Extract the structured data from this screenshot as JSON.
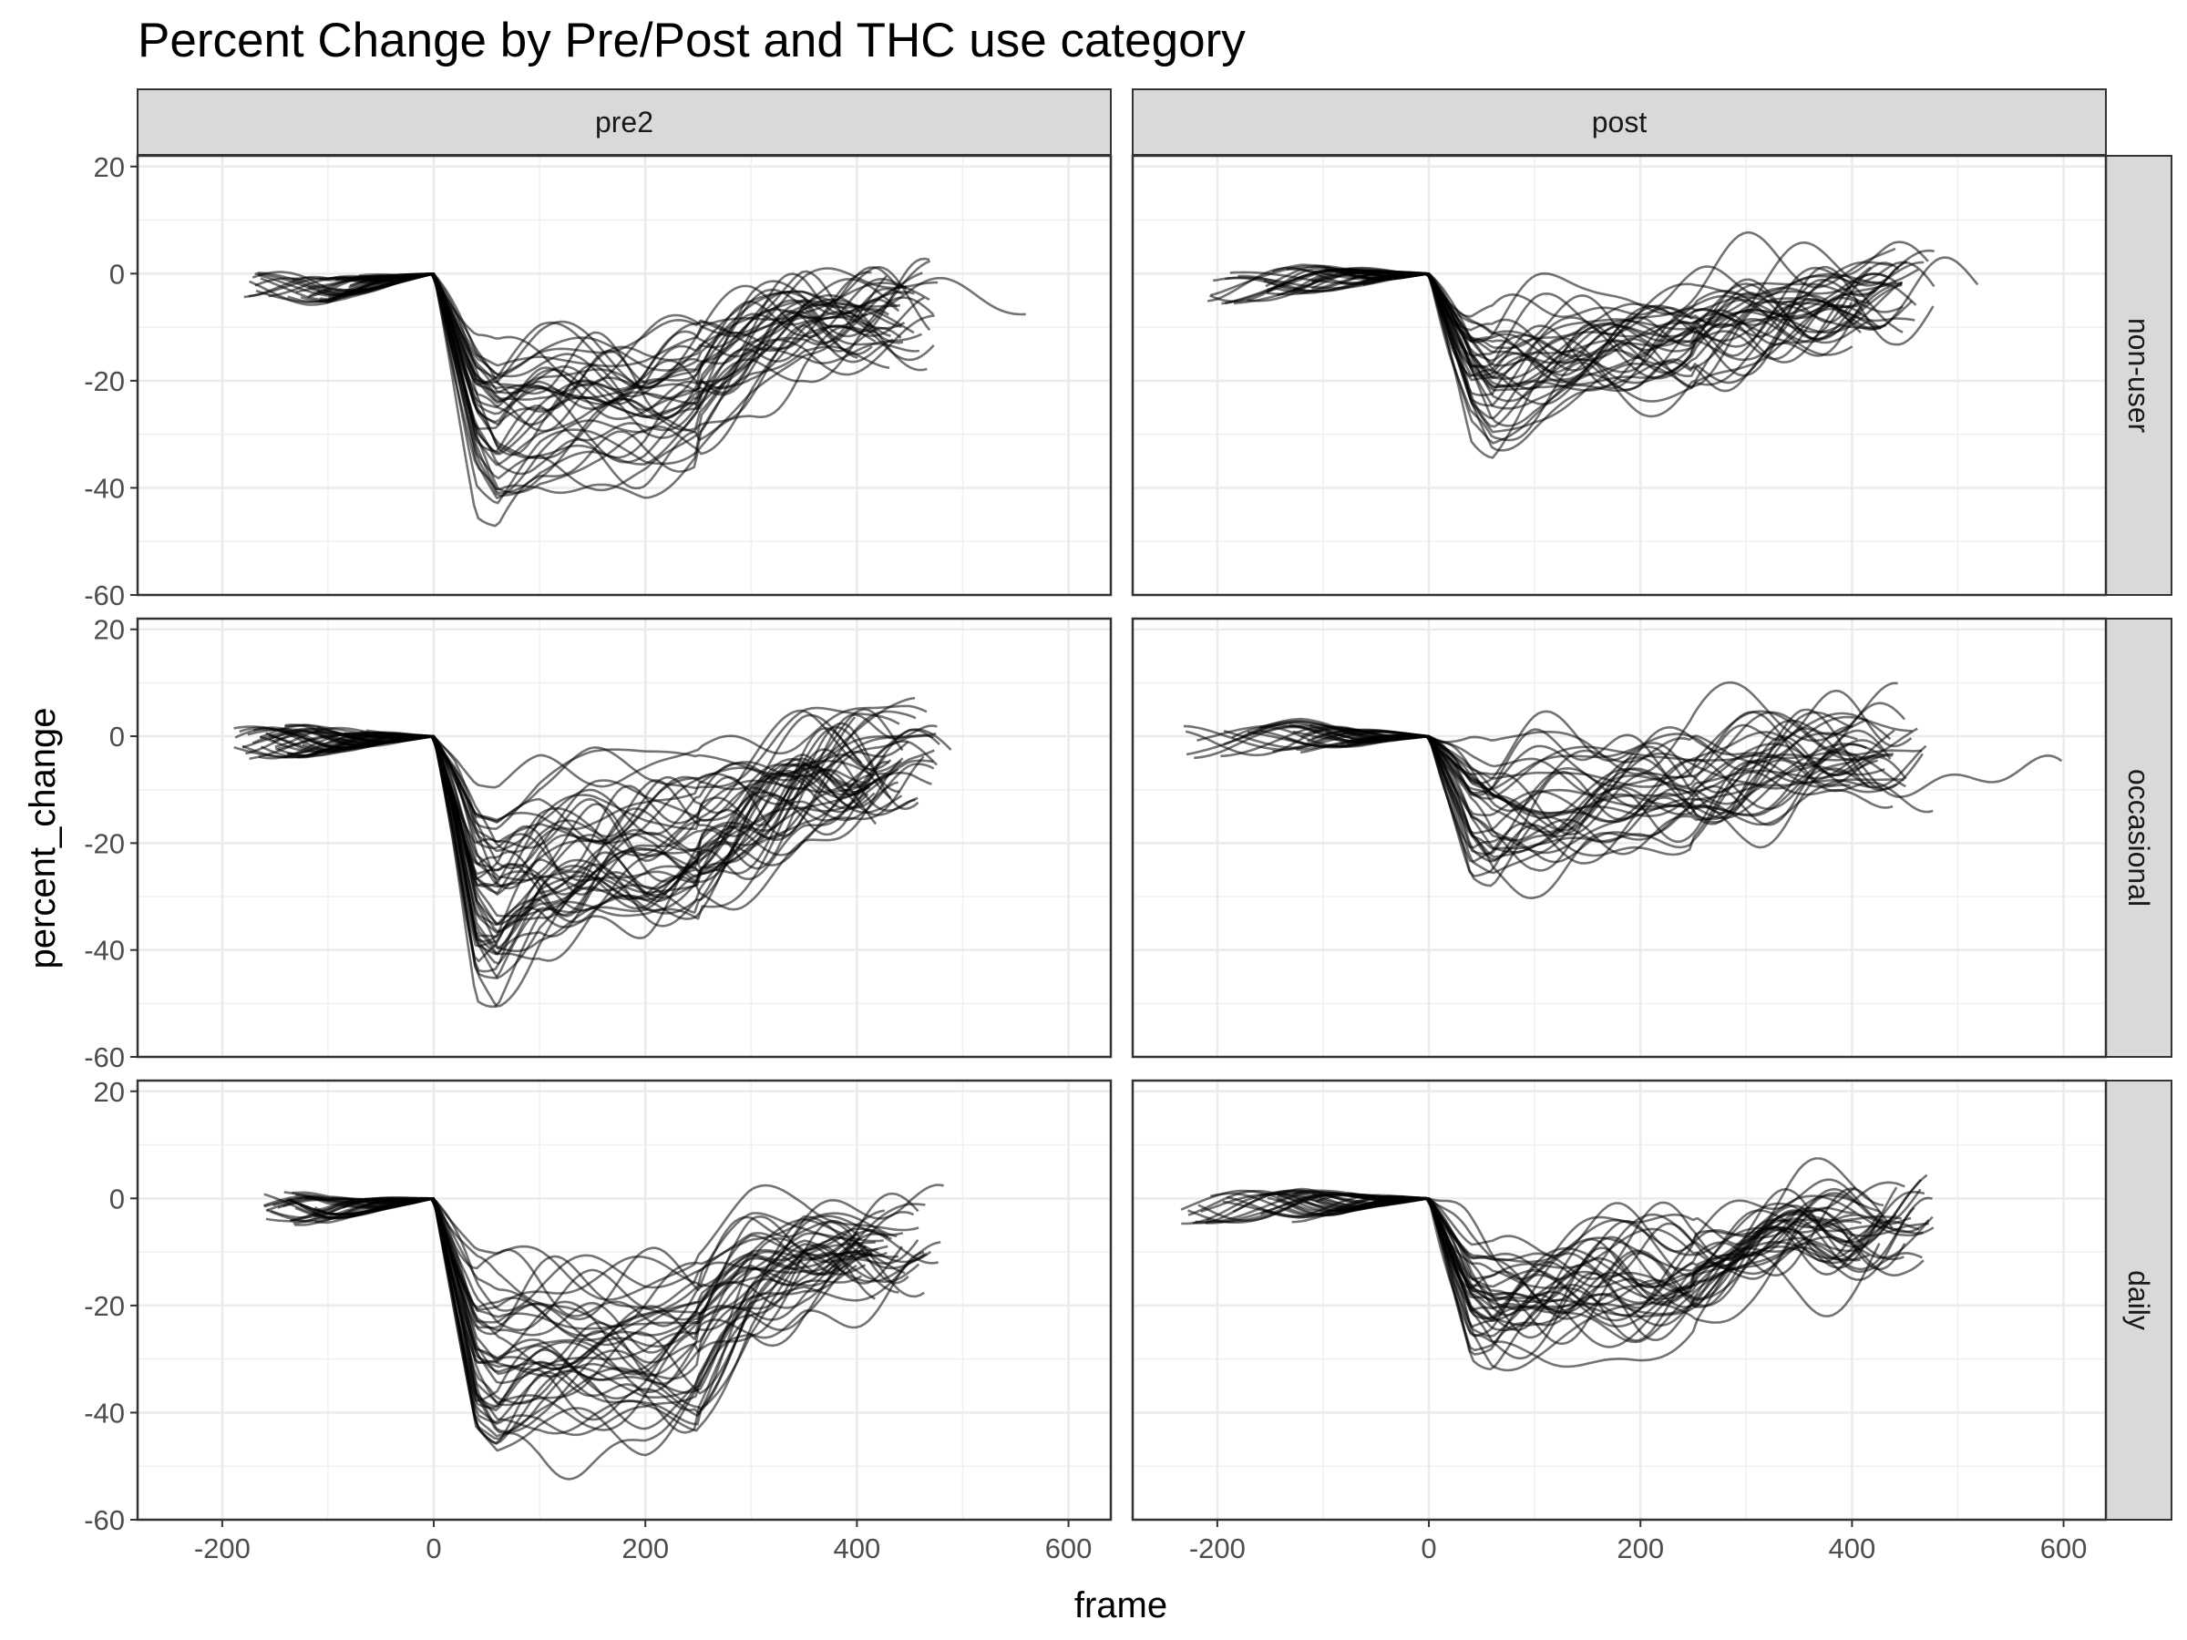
{
  "chart_data": {
    "type": "line",
    "title": "Percent Change by Pre/Post and THC use category",
    "xlabel": "frame",
    "ylabel": "percent_change",
    "xlim": [
      -280,
      640
    ],
    "ylim": [
      -60,
      22
    ],
    "x_ticks": [
      -200,
      0,
      200,
      400,
      600
    ],
    "y_ticks": [
      20,
      0,
      -20,
      -40,
      -60
    ],
    "grid": true,
    "facet_columns": [
      "pre2",
      "post"
    ],
    "facet_rows": [
      "non-user",
      "occasional",
      "daily"
    ],
    "line_color": "#000000",
    "line_opacity": 0.55,
    "panels": [
      {
        "col": "pre2",
        "row": "non-user",
        "n_lines": 38,
        "x_start_min": -180,
        "x_end_max": 560,
        "median_trace": [
          [
            -180,
            -2
          ],
          [
            -100,
            -3
          ],
          [
            0,
            0
          ],
          [
            20,
            -12
          ],
          [
            40,
            -24
          ],
          [
            60,
            -28
          ],
          [
            100,
            -25
          ],
          [
            150,
            -24
          ],
          [
            200,
            -24
          ],
          [
            250,
            -21
          ],
          [
            300,
            -14
          ],
          [
            350,
            -9
          ],
          [
            420,
            -8
          ]
        ]
      },
      {
        "col": "post",
        "row": "non-user",
        "n_lines": 36,
        "x_start_min": -210,
        "x_end_max": 520,
        "median_trace": [
          [
            -200,
            -3
          ],
          [
            -100,
            -1
          ],
          [
            0,
            0
          ],
          [
            20,
            -9
          ],
          [
            40,
            -17
          ],
          [
            60,
            -20
          ],
          [
            100,
            -17
          ],
          [
            150,
            -15
          ],
          [
            200,
            -14
          ],
          [
            250,
            -12
          ],
          [
            300,
            -9
          ],
          [
            350,
            -7
          ],
          [
            440,
            -4
          ]
        ]
      },
      {
        "col": "pre2",
        "row": "occasional",
        "n_lines": 44,
        "x_start_min": -195,
        "x_end_max": 490,
        "median_trace": [
          [
            -150,
            -1
          ],
          [
            -100,
            -1
          ],
          [
            0,
            0
          ],
          [
            20,
            -12
          ],
          [
            40,
            -27
          ],
          [
            60,
            -30
          ],
          [
            100,
            -24
          ],
          [
            150,
            -22
          ],
          [
            200,
            -22
          ],
          [
            250,
            -20
          ],
          [
            300,
            -14
          ],
          [
            350,
            -9
          ],
          [
            450,
            -5
          ]
        ]
      },
      {
        "col": "post",
        "row": "occasional",
        "n_lines": 34,
        "x_start_min": -235,
        "x_end_max": 600,
        "median_trace": [
          [
            -200,
            -1
          ],
          [
            -100,
            0
          ],
          [
            0,
            0
          ],
          [
            20,
            -7
          ],
          [
            40,
            -15
          ],
          [
            60,
            -17
          ],
          [
            100,
            -14
          ],
          [
            150,
            -12
          ],
          [
            200,
            -11
          ],
          [
            250,
            -10
          ],
          [
            300,
            -7
          ],
          [
            350,
            -5
          ],
          [
            450,
            -4
          ]
        ]
      },
      {
        "col": "pre2",
        "row": "daily",
        "n_lines": 40,
        "x_start_min": -165,
        "x_end_max": 485,
        "median_trace": [
          [
            -160,
            -1
          ],
          [
            -100,
            -2
          ],
          [
            0,
            0
          ],
          [
            20,
            -13
          ],
          [
            40,
            -26
          ],
          [
            60,
            -29
          ],
          [
            100,
            -27
          ],
          [
            150,
            -26
          ],
          [
            200,
            -26
          ],
          [
            250,
            -24
          ],
          [
            300,
            -14
          ],
          [
            350,
            -9
          ],
          [
            450,
            -7
          ]
        ]
      },
      {
        "col": "post",
        "row": "daily",
        "n_lines": 36,
        "x_start_min": -235,
        "x_end_max": 480,
        "median_trace": [
          [
            -200,
            -2
          ],
          [
            -100,
            -1
          ],
          [
            0,
            0
          ],
          [
            20,
            -9
          ],
          [
            40,
            -18
          ],
          [
            60,
            -20
          ],
          [
            100,
            -18
          ],
          [
            150,
            -17
          ],
          [
            200,
            -16
          ],
          [
            250,
            -14
          ],
          [
            300,
            -10
          ],
          [
            350,
            -7
          ],
          [
            450,
            -4
          ]
        ]
      }
    ]
  }
}
